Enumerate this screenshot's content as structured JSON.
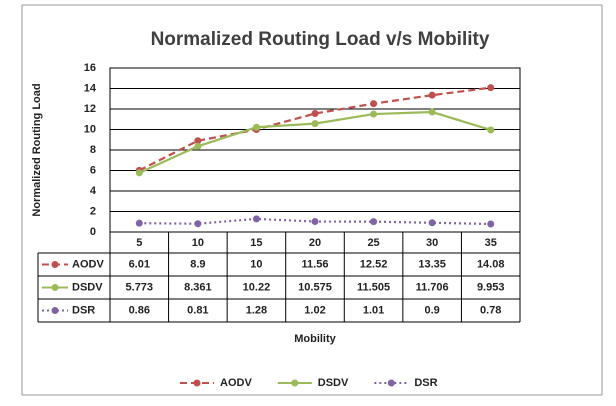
{
  "chart_data": {
    "type": "line",
    "title": "Normalized Routing Load v/s Mobility",
    "ylabel": "Normalized Routing Load",
    "xlabel": "Mobility",
    "categories": [
      "5",
      "10",
      "15",
      "20",
      "25",
      "30",
      "35"
    ],
    "series": [
      {
        "name": "AODV",
        "color": "#c0504d",
        "dash": "dashed",
        "values": [
          6.01,
          8.9,
          10,
          11.56,
          12.52,
          13.35,
          14.08
        ]
      },
      {
        "name": "DSDV",
        "color": "#9bbb59",
        "dash": "solid",
        "values": [
          5.773,
          8.361,
          10.22,
          10.575,
          11.505,
          11.706,
          9.953
        ]
      },
      {
        "name": "DSR",
        "color": "#8064a2",
        "dash": "dotted",
        "values": [
          0.86,
          0.81,
          1.28,
          1.02,
          1.01,
          0.9,
          0.78
        ]
      }
    ],
    "ylim": [
      0,
      16
    ],
    "yticks": [
      0,
      2,
      4,
      6,
      8,
      10,
      12,
      14,
      16
    ],
    "grid": true,
    "data_table": true,
    "legend": "bottom"
  }
}
